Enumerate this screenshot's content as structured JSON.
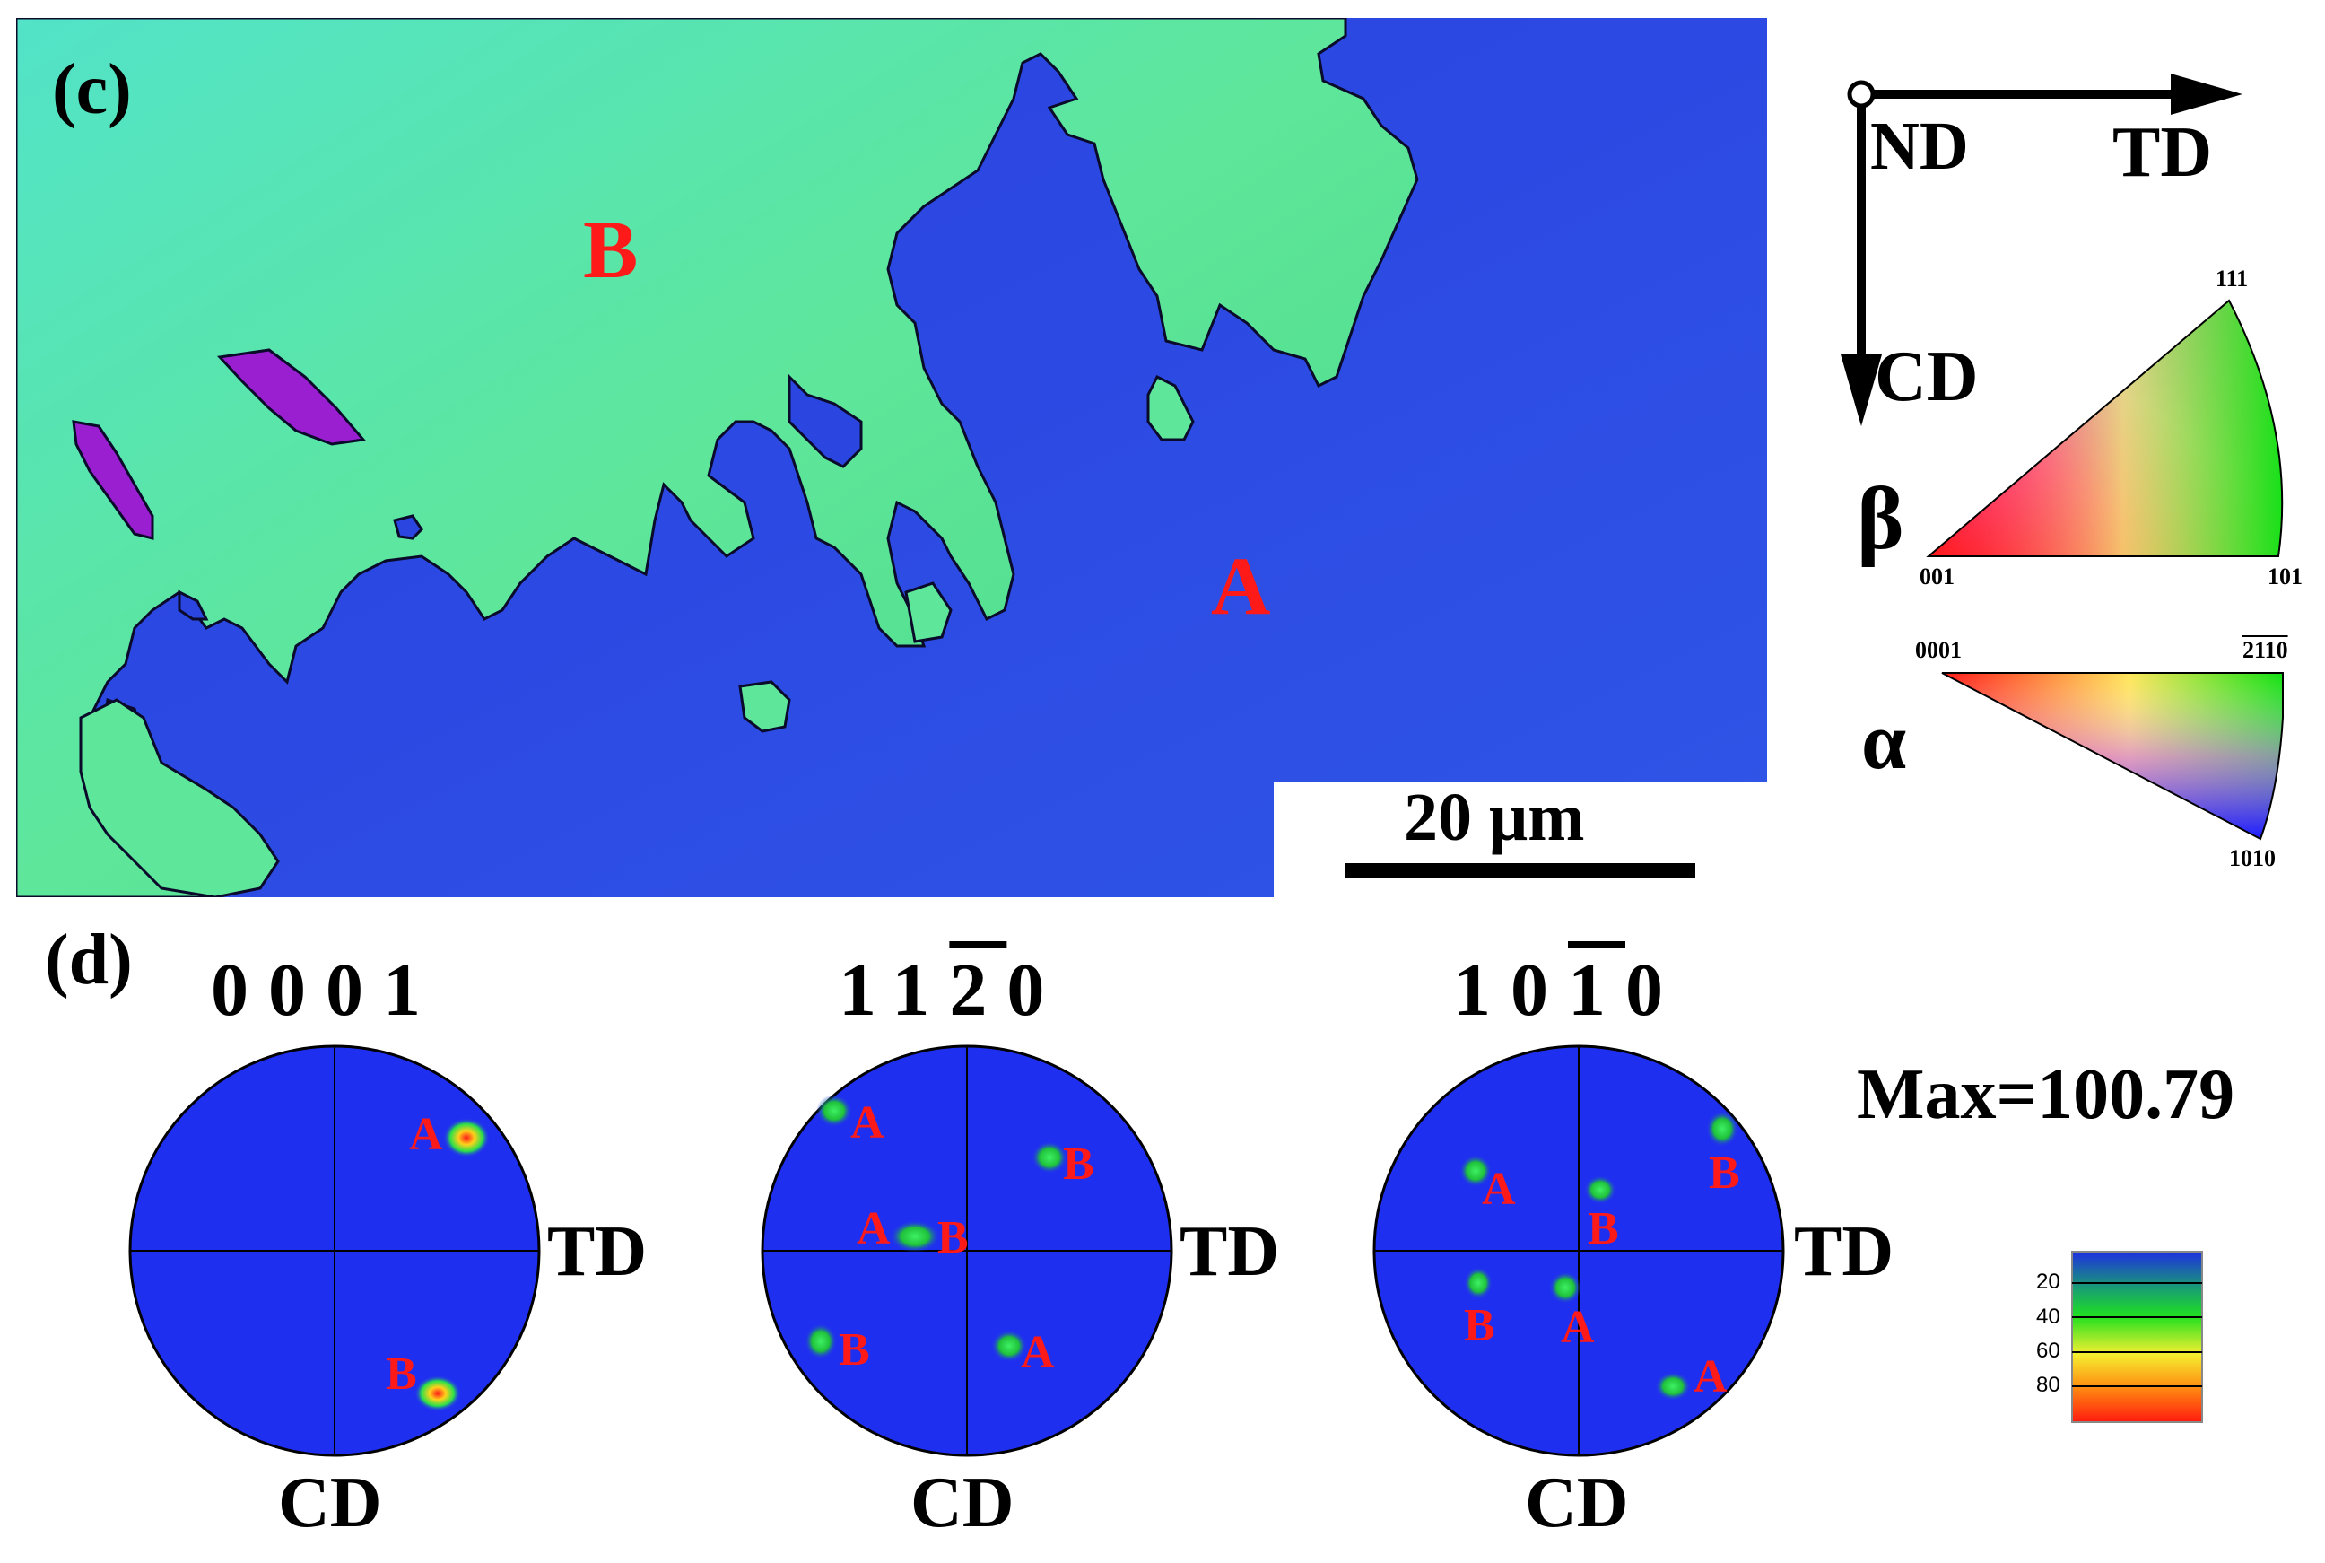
{
  "panel_c": {
    "label": "(c)",
    "grain_labels": [
      "B",
      "A"
    ],
    "scale_bar": "20 μm",
    "axes": {
      "origin": "ND",
      "horizontal": "TD",
      "vertical": "CD"
    },
    "ipf_beta": {
      "symbol": "β",
      "corners": [
        "001",
        "101",
        "111"
      ]
    },
    "ipf_alpha": {
      "symbol": "α",
      "corners": [
        "0001",
        "2110",
        "1010"
      ]
    }
  },
  "panel_d": {
    "label": "(d)",
    "max_text": "Max=100.79",
    "pole_figures": [
      {
        "title_digits": [
          "0",
          "0",
          "0",
          "1"
        ],
        "overbar_index": null,
        "right_axis": "TD",
        "bottom_axis": "CD",
        "spot_labels": [
          "A",
          "B"
        ]
      },
      {
        "title_digits": [
          "1",
          "1",
          "2",
          "0"
        ],
        "overbar_index": 2,
        "right_axis": "TD",
        "bottom_axis": "CD",
        "spot_labels": [
          "A",
          "B",
          "A",
          "B",
          "B",
          "A"
        ]
      },
      {
        "title_digits": [
          "1",
          "0",
          "1",
          "0"
        ],
        "overbar_index": 2,
        "right_axis": "TD",
        "bottom_axis": "CD",
        "spot_labels": [
          "A",
          "B",
          "B",
          "B",
          "A",
          "A"
        ]
      }
    ],
    "colorbar": {
      "ticks": [
        "20",
        "40",
        "60",
        "80"
      ]
    }
  },
  "colors": {
    "blue_grain": "#2b45e0",
    "green_grain": "#4fe39a",
    "purple_grain": "#9a1fd0",
    "label_red": "#ff1a1a",
    "pole_blue": "#1f2ff0"
  }
}
